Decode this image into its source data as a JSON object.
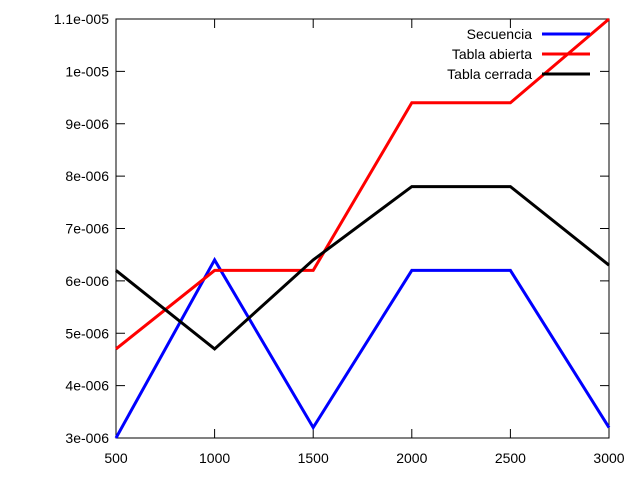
{
  "chart_data": {
    "type": "line",
    "title": "",
    "xlabel": "",
    "ylabel": "",
    "x": [
      500,
      1000,
      1500,
      2000,
      2500,
      3000
    ],
    "xlim": [
      500,
      3000
    ],
    "ylim": [
      3e-06,
      1.1e-05
    ],
    "x_ticks": [
      500,
      1000,
      1500,
      2000,
      2500,
      3000
    ],
    "x_tick_labels": [
      "500",
      "1000",
      "1500",
      "2000",
      "2500",
      "3000"
    ],
    "y_ticks": [
      3e-06,
      4e-06,
      5e-06,
      6e-06,
      7e-06,
      8e-06,
      9e-06,
      1e-05,
      1.1e-05
    ],
    "y_tick_labels": [
      "3e-006",
      "4e-006",
      "5e-006",
      "6e-006",
      "7e-006",
      "8e-006",
      "9e-006",
      "1e-005",
      "1.1e-005"
    ],
    "grid": false,
    "legend_position": "top-right",
    "series": [
      {
        "name": "Secuencia",
        "color": "#0000ff",
        "values": [
          3e-06,
          6.4e-06,
          3.2e-06,
          6.2e-06,
          6.2e-06,
          3.2e-06
        ]
      },
      {
        "name": "Tabla abierta",
        "color": "#ff0000",
        "values": [
          4.7e-06,
          6.2e-06,
          6.2e-06,
          9.4e-06,
          9.4e-06,
          1.1e-05
        ]
      },
      {
        "name": "Tabla cerrada",
        "color": "#000000",
        "values": [
          6.2e-06,
          4.7e-06,
          6.4e-06,
          7.8e-06,
          7.8e-06,
          6.3e-06
        ]
      }
    ]
  }
}
